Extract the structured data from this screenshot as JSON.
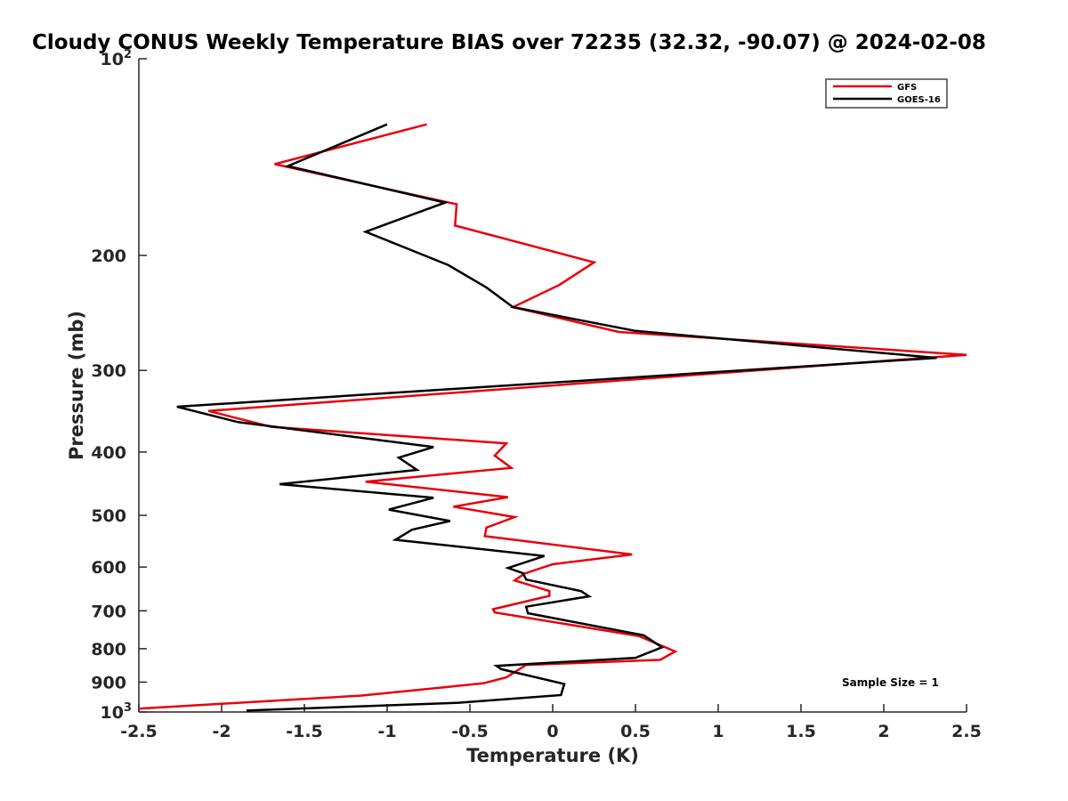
{
  "chart_data": {
    "type": "line",
    "title": "Cloudy CONUS Weekly Temperature BIAS over 72235 (32.32, -90.07) @ 2024-02-08",
    "xlabel": "Temperature (K)",
    "ylabel": "Pressure (mb)",
    "xlim": [
      -2.5,
      2.5
    ],
    "ylim": [
      100,
      1000
    ],
    "yscale": "log",
    "y_reversed": true,
    "grid": false,
    "legend_position": "top-right",
    "x_ticks": [
      "-2.5",
      "-2",
      "-1.5",
      "-1",
      "-0.5",
      "0",
      "0.5",
      "1",
      "1.5",
      "2",
      "2.5"
    ],
    "x_tick_values": [
      -2.5,
      -2,
      -1.5,
      -1,
      -0.5,
      0,
      0.5,
      1,
      1.5,
      2,
      2.5
    ],
    "y_tick_values": [
      100,
      200,
      300,
      400,
      500,
      600,
      700,
      800,
      900,
      1000
    ],
    "y_tick_labels": {
      "p100": {
        "base": "10",
        "exp": "2"
      },
      "p200": "200",
      "p300": "300",
      "p400": "400",
      "p500": "500",
      "p600": "600",
      "p700": "700",
      "p800": "800",
      "p900": "900",
      "p1000": {
        "base": "10",
        "exp": "3"
      }
    },
    "annotation": "Sample Size = 1",
    "series": [
      {
        "name": "GFS",
        "color": "#e8000b",
        "temperature": [
          -0.76,
          -1.68,
          -0.58,
          -0.59,
          0.25,
          0.04,
          -0.24,
          0.4,
          2.5,
          -2.08,
          -1.7,
          -0.28,
          -0.35,
          -0.25,
          -1.13,
          -0.27,
          -0.6,
          -0.23,
          -0.4,
          -0.41,
          0.48,
          0.0,
          -0.17,
          -0.23,
          -0.02,
          -0.02,
          -0.36,
          -0.35,
          0.52,
          0.74,
          0.65,
          -0.16,
          -0.28,
          -0.42,
          -1.16,
          -2.5
        ],
        "pressure": [
          126,
          145,
          167,
          180,
          205,
          222,
          240,
          262,
          284,
          346,
          366,
          388,
          405,
          423,
          444,
          469,
          485,
          503,
          522,
          538,
          574,
          594,
          614,
          629,
          653,
          664,
          696,
          704,
          765,
          808,
          832,
          847,
          885,
          904,
          944,
          988
        ]
      },
      {
        "name": "GOES-16",
        "color": "#000000",
        "temperature": [
          -1.0,
          -1.6,
          -0.65,
          -1.13,
          -0.63,
          -0.4,
          -0.24,
          0.5,
          2.32,
          -2.27,
          -1.9,
          -0.72,
          -0.93,
          -0.82,
          -1.65,
          -0.72,
          -0.99,
          -0.62,
          -0.85,
          -0.95,
          -0.05,
          -0.27,
          -0.18,
          -0.16,
          0.17,
          0.22,
          -0.16,
          -0.15,
          0.55,
          0.66,
          0.5,
          -0.34,
          -0.31,
          0.07,
          0.05,
          -0.57,
          -1.85
        ],
        "pressure": [
          126,
          146,
          166,
          184,
          207,
          224,
          240,
          261,
          287,
          341,
          360,
          393,
          408,
          426,
          448,
          470,
          490,
          510,
          526,
          545,
          577,
          602,
          613,
          627,
          653,
          665,
          690,
          706,
          763,
          796,
          826,
          850,
          860,
          906,
          942,
          968,
          995
        ]
      }
    ]
  }
}
